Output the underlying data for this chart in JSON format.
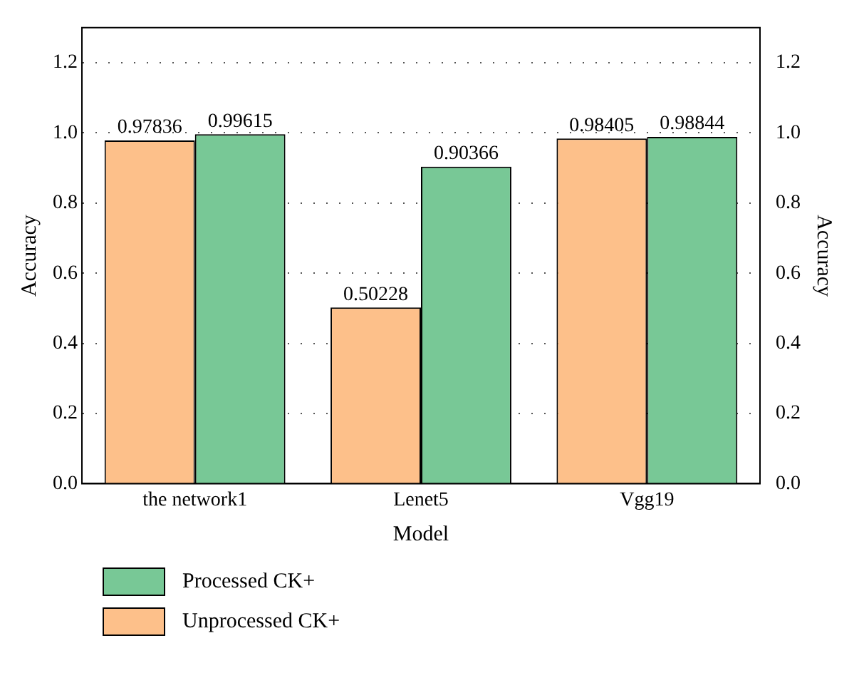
{
  "chart_data": {
    "type": "bar",
    "xlabel": "Model",
    "ylabel": "Accuracy",
    "y2label": "Accuracy",
    "categories": [
      "the network1",
      "Lenet5",
      "Vgg19"
    ],
    "series": [
      {
        "name": "Unprocessed CK+",
        "color": "#fdc08a",
        "values": [
          0.97836,
          0.50228,
          0.98405
        ]
      },
      {
        "name": "Processed CK+",
        "color": "#78c896",
        "values": [
          0.99615,
          0.90366,
          0.98844
        ]
      }
    ],
    "ylim": [
      0,
      1.3
    ],
    "yticks": [
      {
        "value": 0,
        "label": "0.0"
      },
      {
        "value": 0.2,
        "label": "0.2"
      },
      {
        "value": 0.4,
        "label": "0.4"
      },
      {
        "value": 0.6,
        "label": "0.6"
      },
      {
        "value": 0.8,
        "label": "0.8"
      },
      {
        "value": 1,
        "label": "1.0"
      },
      {
        "value": 1.2,
        "label": "1.2"
      }
    ],
    "y2lim": [
      0,
      1.3
    ],
    "y2ticks": [
      {
        "value": 0,
        "label": "0.0"
      },
      {
        "value": 0.2,
        "label": "0.2"
      },
      {
        "value": 0.4,
        "label": "0.4"
      },
      {
        "value": 0.6,
        "label": "0.6"
      },
      {
        "value": 0.8,
        "label": "0.8"
      },
      {
        "value": 1,
        "label": "1.0"
      },
      {
        "value": 1.2,
        "label": "1.2"
      }
    ],
    "grid": "y",
    "legend": "bottom left",
    "data_labels": true
  }
}
